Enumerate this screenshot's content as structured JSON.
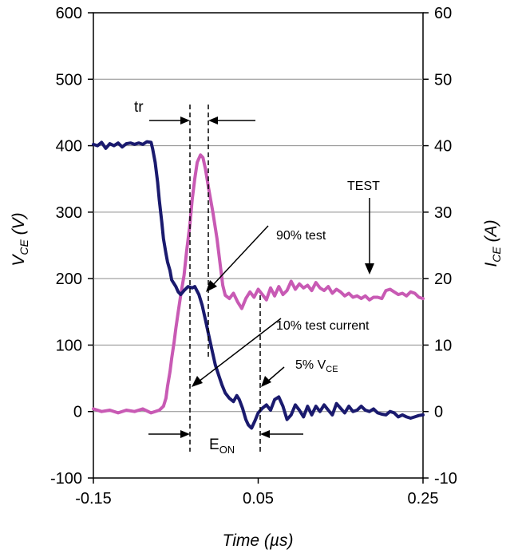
{
  "chart_data": {
    "type": "line",
    "xlabel": "Time (µs)",
    "ylabel_left": {
      "main": "V",
      "sub": "CE",
      "suffix": " (V)"
    },
    "ylabel_right": {
      "main": "I",
      "sub": "CE",
      "suffix": " (A)"
    },
    "x_ticks": [
      "-0.15",
      "0.05",
      "0.25"
    ],
    "x_tick_values": [
      -0.15,
      0.05,
      0.25
    ],
    "y_left_ticks": [
      "600",
      "500",
      "400",
      "300",
      "200",
      "100",
      "0",
      "-100"
    ],
    "y_left_tick_values": [
      600,
      500,
      400,
      300,
      200,
      100,
      0,
      -100
    ],
    "y_right_ticks": [
      "60",
      "50",
      "40",
      "30",
      "20",
      "10",
      "0",
      "-10"
    ],
    "y_right_tick_values": [
      60,
      50,
      40,
      30,
      20,
      10,
      0,
      -10
    ],
    "xlim": [
      -0.15,
      0.25
    ],
    "ylim_left": [
      -100,
      600
    ],
    "ylim_right": [
      -10,
      60
    ],
    "grid": "horizontal",
    "series": [
      {
        "axis": "left",
        "color": "#1a1a6e",
        "points": [
          [
            -0.15,
            402
          ],
          [
            -0.145,
            400
          ],
          [
            -0.14,
            405
          ],
          [
            -0.135,
            396
          ],
          [
            -0.13,
            403
          ],
          [
            -0.125,
            400
          ],
          [
            -0.12,
            404
          ],
          [
            -0.115,
            398
          ],
          [
            -0.11,
            403
          ],
          [
            -0.105,
            404
          ],
          [
            -0.1,
            402
          ],
          [
            -0.095,
            404
          ],
          [
            -0.09,
            402
          ],
          [
            -0.085,
            406
          ],
          [
            -0.08,
            405
          ],
          [
            -0.078,
            395
          ],
          [
            -0.075,
            375
          ],
          [
            -0.072,
            345
          ],
          [
            -0.07,
            318
          ],
          [
            -0.067,
            285
          ],
          [
            -0.065,
            260
          ],
          [
            -0.062,
            238
          ],
          [
            -0.06,
            225
          ],
          [
            -0.057,
            212
          ],
          [
            -0.055,
            198
          ],
          [
            -0.05,
            188
          ],
          [
            -0.047,
            180
          ],
          [
            -0.044,
            176
          ],
          [
            -0.04,
            182
          ],
          [
            -0.035,
            188
          ],
          [
            -0.03,
            186
          ],
          [
            -0.027,
            188
          ],
          [
            -0.022,
            176
          ],
          [
            -0.018,
            160
          ],
          [
            -0.014,
            138
          ],
          [
            -0.01,
            115
          ],
          [
            -0.006,
            92
          ],
          [
            -0.002,
            70
          ],
          [
            0.002,
            55
          ],
          [
            0.006,
            40
          ],
          [
            0.01,
            28
          ],
          [
            0.015,
            20
          ],
          [
            0.02,
            15
          ],
          [
            0.024,
            24
          ],
          [
            0.027,
            18
          ],
          [
            0.031,
            5
          ],
          [
            0.035,
            -12
          ],
          [
            0.038,
            -20
          ],
          [
            0.042,
            -25
          ],
          [
            0.046,
            -14
          ],
          [
            0.05,
            -2
          ],
          [
            0.055,
            5
          ],
          [
            0.06,
            10
          ],
          [
            0.065,
            2
          ],
          [
            0.07,
            18
          ],
          [
            0.075,
            22
          ],
          [
            0.08,
            8
          ],
          [
            0.085,
            -12
          ],
          [
            0.09,
            -5
          ],
          [
            0.095,
            10
          ],
          [
            0.1,
            2
          ],
          [
            0.105,
            -8
          ],
          [
            0.11,
            8
          ],
          [
            0.115,
            -5
          ],
          [
            0.12,
            8
          ],
          [
            0.125,
            0
          ],
          [
            0.13,
            10
          ],
          [
            0.135,
            2
          ],
          [
            0.14,
            -5
          ],
          [
            0.145,
            12
          ],
          [
            0.15,
            5
          ],
          [
            0.155,
            -2
          ],
          [
            0.16,
            8
          ],
          [
            0.165,
            0
          ],
          [
            0.17,
            2
          ],
          [
            0.175,
            8
          ],
          [
            0.18,
            2
          ],
          [
            0.185,
            0
          ],
          [
            0.19,
            4
          ],
          [
            0.195,
            -2
          ],
          [
            0.2,
            -4
          ],
          [
            0.205,
            -5
          ],
          [
            0.21,
            0
          ],
          [
            0.215,
            -2
          ],
          [
            0.22,
            -8
          ],
          [
            0.225,
            -5
          ],
          [
            0.23,
            -8
          ],
          [
            0.235,
            -10
          ],
          [
            0.24,
            -8
          ],
          [
            0.245,
            -6
          ],
          [
            0.25,
            -5
          ]
        ]
      },
      {
        "axis": "right",
        "color": "#c85ab4",
        "points": [
          [
            -0.15,
            0.4
          ],
          [
            -0.14,
            0
          ],
          [
            -0.13,
            0.2
          ],
          [
            -0.12,
            -0.2
          ],
          [
            -0.11,
            0.2
          ],
          [
            -0.1,
            0
          ],
          [
            -0.09,
            0.4
          ],
          [
            -0.08,
            -0.2
          ],
          [
            -0.07,
            0.2
          ],
          [
            -0.065,
            0.8
          ],
          [
            -0.062,
            2
          ],
          [
            -0.06,
            3.8
          ],
          [
            -0.057,
            6
          ],
          [
            -0.055,
            8
          ],
          [
            -0.052,
            10.5
          ],
          [
            -0.05,
            12.5
          ],
          [
            -0.047,
            15
          ],
          [
            -0.044,
            17.5
          ],
          [
            -0.04,
            20.5
          ],
          [
            -0.037,
            24
          ],
          [
            -0.033,
            28
          ],
          [
            -0.03,
            32
          ],
          [
            -0.027,
            35
          ],
          [
            -0.024,
            37.5
          ],
          [
            -0.02,
            38.6
          ],
          [
            -0.017,
            38.2
          ],
          [
            -0.014,
            36.5
          ],
          [
            -0.01,
            33.5
          ],
          [
            -0.005,
            30
          ],
          [
            0,
            26
          ],
          [
            0.004,
            22
          ],
          [
            0.007,
            19
          ],
          [
            0.01,
            17.5
          ],
          [
            0.015,
            17
          ],
          [
            0.02,
            17.8
          ],
          [
            0.025,
            16.5
          ],
          [
            0.03,
            15.5
          ],
          [
            0.035,
            17
          ],
          [
            0.04,
            18
          ],
          [
            0.045,
            17.2
          ],
          [
            0.05,
            18.4
          ],
          [
            0.055,
            17.6
          ],
          [
            0.06,
            16.8
          ],
          [
            0.065,
            18.6
          ],
          [
            0.07,
            17.4
          ],
          [
            0.075,
            18.8
          ],
          [
            0.08,
            17.6
          ],
          [
            0.085,
            18.2
          ],
          [
            0.09,
            19.6
          ],
          [
            0.095,
            18.4
          ],
          [
            0.1,
            19.2
          ],
          [
            0.105,
            18.6
          ],
          [
            0.11,
            19
          ],
          [
            0.115,
            18.2
          ],
          [
            0.12,
            19.4
          ],
          [
            0.125,
            18.6
          ],
          [
            0.13,
            18.2
          ],
          [
            0.135,
            18.8
          ],
          [
            0.14,
            17.8
          ],
          [
            0.145,
            18.4
          ],
          [
            0.15,
            18
          ],
          [
            0.155,
            17.4
          ],
          [
            0.16,
            17.8
          ],
          [
            0.165,
            17.2
          ],
          [
            0.17,
            17.4
          ],
          [
            0.175,
            17
          ],
          [
            0.18,
            17.4
          ],
          [
            0.185,
            16.8
          ],
          [
            0.19,
            17.2
          ],
          [
            0.195,
            17.2
          ],
          [
            0.2,
            17
          ],
          [
            0.205,
            18.2
          ],
          [
            0.21,
            18.4
          ],
          [
            0.215,
            18
          ],
          [
            0.22,
            17.6
          ],
          [
            0.225,
            17.8
          ],
          [
            0.23,
            17.4
          ],
          [
            0.235,
            18
          ],
          [
            0.24,
            17.8
          ],
          [
            0.245,
            17.2
          ],
          [
            0.25,
            17
          ]
        ]
      }
    ],
    "annotations": {
      "tr": "tr",
      "test": "TEST",
      "ninety_test": "90% test",
      "ten_test_current": "10% test current",
      "five_vce_prefix": "5% V",
      "five_vce_sub": "CE",
      "eon_main": "E",
      "eon_sub": "ON"
    }
  }
}
